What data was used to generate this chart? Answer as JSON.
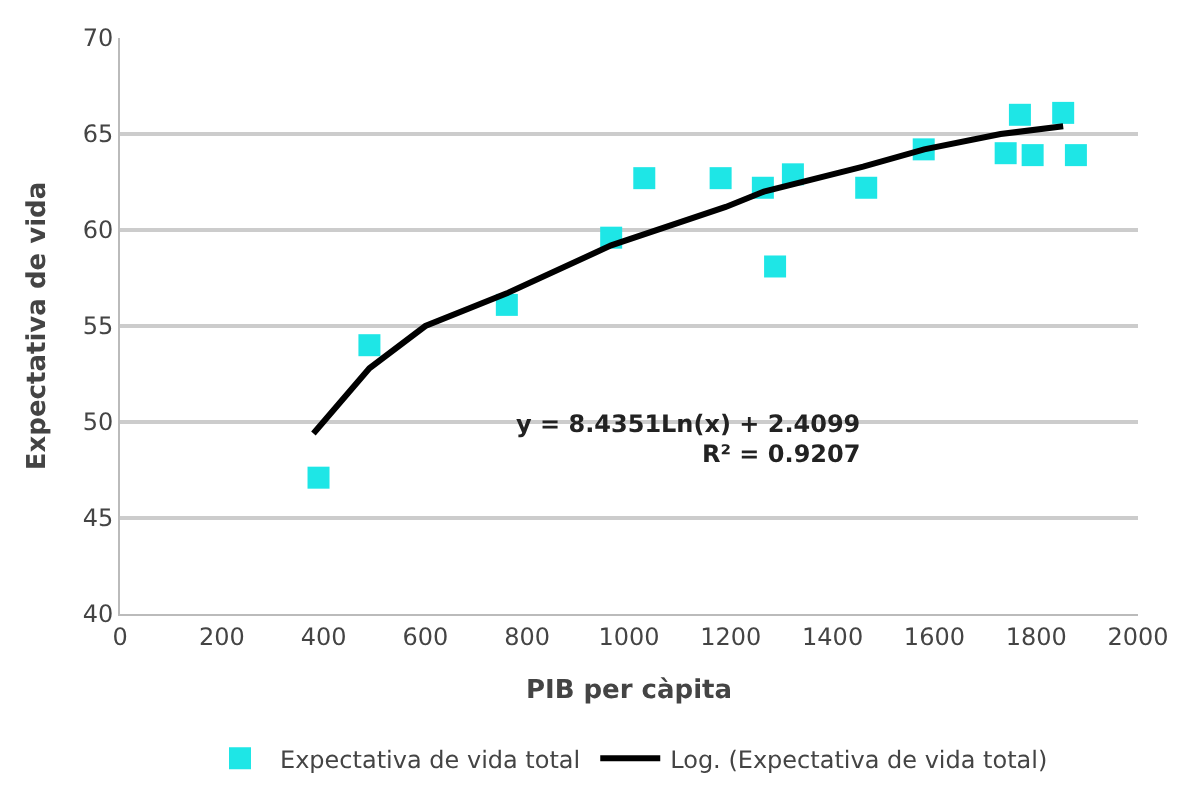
{
  "chart_data": {
    "type": "scatter",
    "xlabel": "PIB per càpita",
    "ylabel": "Expectativa de vida",
    "annotations": [
      "y = 8.4351Ln(x) + 2.4099",
      "R² = 0.9207"
    ],
    "series": [
      {
        "name": "Expectativa de vida total",
        "color": "#1ee6e6",
        "marker": "square",
        "x": [
          390,
          490,
          760,
          965,
          1030,
          1180,
          1263,
          1287,
          1322,
          1466,
          1579,
          1740,
          1768,
          1793,
          1853,
          1878
        ],
        "values": [
          47.1,
          54.0,
          56.1,
          59.6,
          62.7,
          62.7,
          62.2,
          58.1,
          62.9,
          62.2,
          64.2,
          64.0,
          66.0,
          63.9,
          66.1,
          63.9
        ]
      },
      {
        "name": "Log. (Expectativa de vida total)",
        "type": "line",
        "color": "#000000",
        "x": [
          380,
          490,
          600,
          760,
          965,
          1190,
          1265,
          1460,
          1580,
          1730,
          1853
        ],
        "values": [
          49.4,
          52.8,
          55.0,
          56.7,
          59.2,
          61.2,
          62.0,
          63.3,
          64.2,
          65.0,
          65.4
        ]
      }
    ],
    "xlim": [
      0,
      2000
    ],
    "xticks": [
      0,
      200,
      400,
      600,
      800,
      1000,
      1200,
      1400,
      1600,
      1800,
      2000
    ],
    "ylim": [
      40,
      70
    ],
    "yticks": [
      40,
      45,
      50,
      55,
      60,
      65,
      70
    ],
    "grid": "y",
    "legend": "bottom"
  }
}
